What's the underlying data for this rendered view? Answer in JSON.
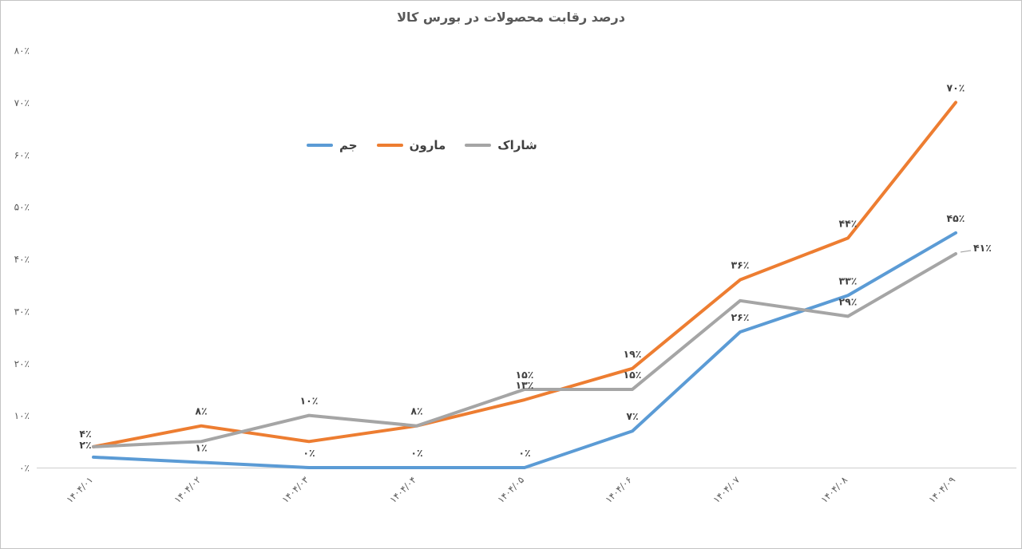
{
  "chart_data": {
    "type": "line",
    "title": "درصد رقابت محصولات در بورس کالا",
    "xlabel": "",
    "ylabel": "",
    "ylim": [
      0,
      80
    ],
    "grid": false,
    "legend_position": "inside-upper-left-center",
    "axis_line_color": "#d9d9d9",
    "tick_label_color": "#595959",
    "data_label_color": "#404040",
    "categories": [
      "۱۴۰۴/۰۱",
      "۱۴۰۴/۰۲",
      "۱۴۰۴/۰۳",
      "۱۴۰۴/۰۴",
      "۱۴۰۴/۰۵",
      "۱۴۰۴/۰۶",
      "۱۴۰۴/۰۷",
      "۱۴۰۴/۰۸",
      "۱۴۰۴/۰۹"
    ],
    "y_ticks": [
      "۰٪",
      "۱۰٪",
      "۲۰٪",
      "۳۰٪",
      "۴۰٪",
      "۵۰٪",
      "۶۰٪",
      "۷۰٪",
      "۸۰٪"
    ],
    "y_tick_values": [
      0,
      10,
      20,
      30,
      40,
      50,
      60,
      70,
      80
    ],
    "series": [
      {
        "id": "jam",
        "name": "جم",
        "color": "#5B9BD5",
        "values": [
          2,
          1,
          0,
          0,
          0,
          7,
          26,
          33,
          45
        ],
        "labels": [
          "۲٪",
          "۱٪",
          "۰٪",
          "۰٪",
          "۰٪",
          "۷٪",
          "۲۶٪",
          "۳۳٪",
          "۴۵٪"
        ]
      },
      {
        "id": "maroun",
        "name": "مارون",
        "color": "#ED7D31",
        "values": [
          4,
          8,
          5,
          8,
          13,
          19,
          36,
          44,
          70
        ],
        "labels": [
          "۴٪",
          "۸٪",
          null,
          "۸٪",
          "۱۳٪",
          "۱۹٪",
          "۳۶٪",
          "۴۴٪",
          "۷۰٪"
        ]
      },
      {
        "id": "sharak",
        "name": "شاراک",
        "color": "#A5A5A5",
        "values": [
          4,
          5,
          10,
          8,
          15,
          15,
          32,
          29,
          41
        ],
        "labels": [
          null,
          null,
          "۱۰٪",
          null,
          "۱۵٪",
          "۱۵٪",
          null,
          "۲۹٪",
          "۴۱٪"
        ]
      }
    ],
    "label_offsets": {
      "jam.0": [
        -10,
        -11
      ],
      "maroun.0": [
        -10,
        -12
      ],
      "sharak.8": [
        22,
        -3
      ]
    },
    "leader_labels": [
      "sharak.8"
    ]
  }
}
